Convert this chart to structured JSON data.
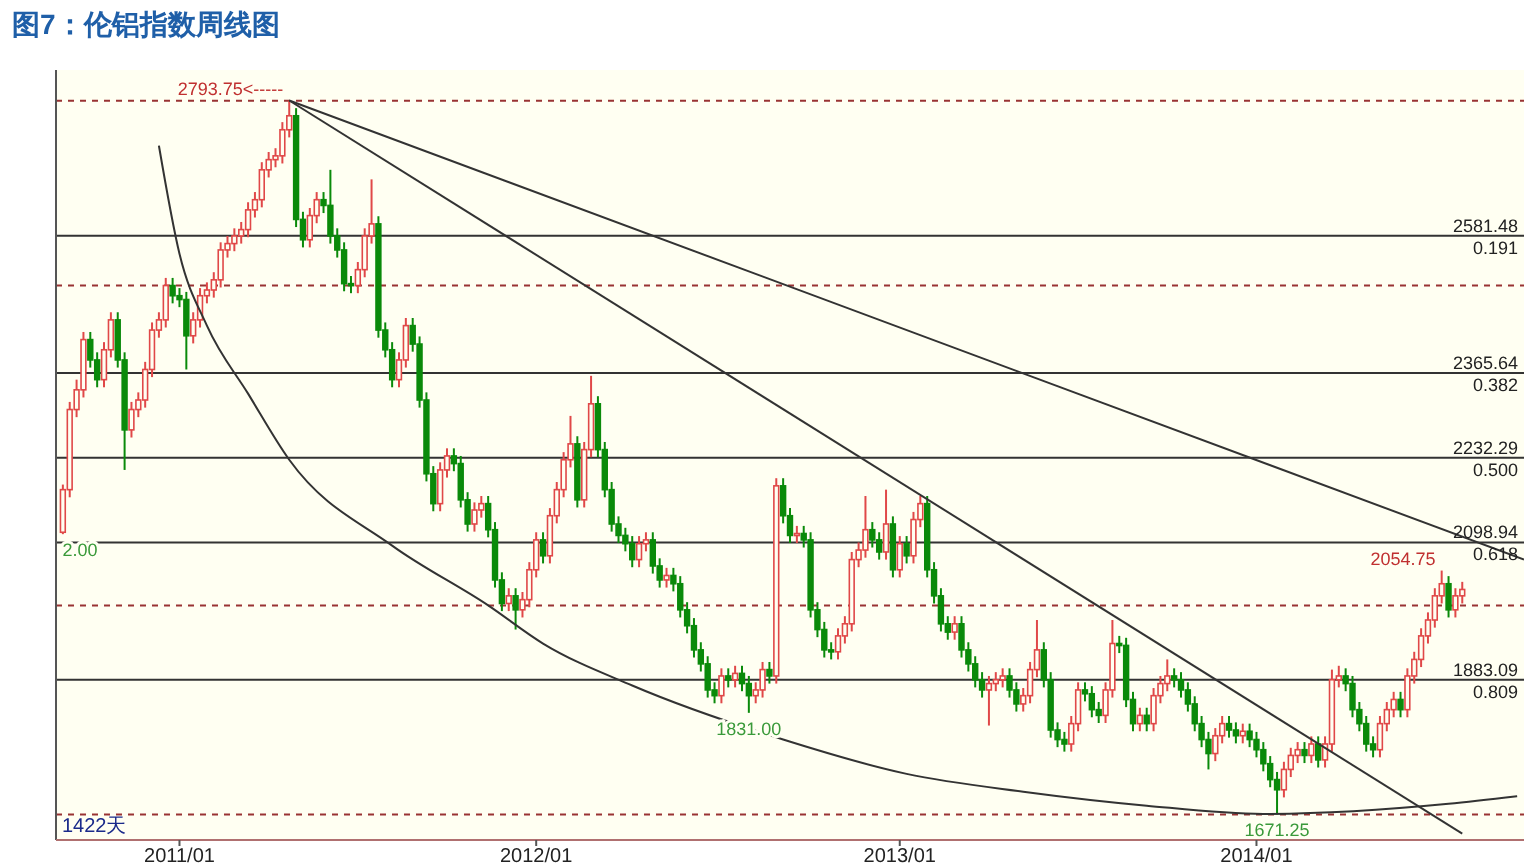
{
  "chart_data": {
    "type": "candlestick",
    "title": "图7：伦铝指数周线图",
    "x": [
      "2010-09-06",
      "2010-09-13",
      "2010-09-20",
      "2010-09-27",
      "2010-10-04",
      "2010-10-11",
      "2010-10-18",
      "2010-10-25",
      "2010-11-01",
      "2010-11-08",
      "2010-11-15",
      "2010-11-22",
      "2010-11-29",
      "2010-12-06",
      "2010-12-13",
      "2010-12-20",
      "2010-12-27",
      "2011-01-03",
      "2011-01-10",
      "2011-01-17",
      "2011-01-24",
      "2011-01-31",
      "2011-02-07",
      "2011-02-14",
      "2011-02-21",
      "2011-02-28",
      "2011-03-07",
      "2011-03-14",
      "2011-03-21",
      "2011-03-28",
      "2011-04-04",
      "2011-04-11",
      "2011-04-18",
      "2011-04-25",
      "2011-05-02",
      "2011-05-09",
      "2011-05-16",
      "2011-05-23",
      "2011-05-30",
      "2011-06-06",
      "2011-06-13",
      "2011-06-20",
      "2011-06-27",
      "2011-07-04",
      "2011-07-11",
      "2011-07-18",
      "2011-07-25",
      "2011-08-01",
      "2011-08-08",
      "2011-08-15",
      "2011-08-22",
      "2011-08-29",
      "2011-09-05",
      "2011-09-12",
      "2011-09-19",
      "2011-09-26",
      "2011-10-03",
      "2011-10-10",
      "2011-10-17",
      "2011-10-24",
      "2011-10-31",
      "2011-11-07",
      "2011-11-14",
      "2011-11-21",
      "2011-11-28",
      "2011-12-05",
      "2011-12-12",
      "2011-12-19",
      "2011-12-26",
      "2012-01-02",
      "2012-01-09",
      "2012-01-16",
      "2012-01-23",
      "2012-01-30",
      "2012-02-06",
      "2012-02-13",
      "2012-02-20",
      "2012-02-27",
      "2012-03-05",
      "2012-03-12",
      "2012-03-19",
      "2012-03-26",
      "2012-04-02",
      "2012-04-09",
      "2012-04-16",
      "2012-04-23",
      "2012-04-30",
      "2012-05-07",
      "2012-05-14",
      "2012-05-21",
      "2012-05-28",
      "2012-06-04",
      "2012-06-11",
      "2012-06-18",
      "2012-06-25",
      "2012-07-02",
      "2012-07-09",
      "2012-07-16",
      "2012-07-23",
      "2012-07-30",
      "2012-08-06",
      "2012-08-13",
      "2012-08-20",
      "2012-08-27",
      "2012-09-03",
      "2012-09-10",
      "2012-09-17",
      "2012-09-24",
      "2012-10-01",
      "2012-10-08",
      "2012-10-15",
      "2012-10-22",
      "2012-10-29",
      "2012-11-05",
      "2012-11-12",
      "2012-11-19",
      "2012-11-26",
      "2012-12-03",
      "2012-12-10",
      "2012-12-17",
      "2012-12-24",
      "2012-12-31",
      "2013-01-07",
      "2013-01-14",
      "2013-01-21",
      "2013-01-28",
      "2013-02-04",
      "2013-02-11",
      "2013-02-18",
      "2013-02-25",
      "2013-03-04",
      "2013-03-11",
      "2013-03-18",
      "2013-03-25",
      "2013-04-01",
      "2013-04-08",
      "2013-04-15",
      "2013-04-22",
      "2013-04-29",
      "2013-05-06",
      "2013-05-13",
      "2013-05-20",
      "2013-05-27",
      "2013-06-03",
      "2013-06-10",
      "2013-06-17",
      "2013-06-24",
      "2013-07-01",
      "2013-07-08",
      "2013-07-15",
      "2013-07-22",
      "2013-07-29",
      "2013-08-05",
      "2013-08-12",
      "2013-08-19",
      "2013-08-26",
      "2013-09-02",
      "2013-09-09",
      "2013-09-16",
      "2013-09-23",
      "2013-09-30",
      "2013-10-07",
      "2013-10-14",
      "2013-10-21",
      "2013-10-28",
      "2013-11-04",
      "2013-11-11",
      "2013-11-18",
      "2013-11-25",
      "2013-12-02",
      "2013-12-09",
      "2013-12-16",
      "2013-12-23",
      "2013-12-30",
      "2014-01-06",
      "2014-01-13",
      "2014-01-20",
      "2014-01-27",
      "2014-02-03",
      "2014-02-10",
      "2014-02-17",
      "2014-02-24",
      "2014-03-03",
      "2014-03-10",
      "2014-03-17",
      "2014-03-24",
      "2014-03-31",
      "2014-04-07",
      "2014-04-14",
      "2014-04-21",
      "2014-04-28",
      "2014-05-05",
      "2014-05-12",
      "2014-05-19",
      "2014-05-26",
      "2014-06-02",
      "2014-06-09",
      "2014-06-16",
      "2014-06-23",
      "2014-06-30",
      "2014-07-07",
      "2014-07-14",
      "2014-07-21",
      "2014-07-28",
      "2014-08-04"
    ],
    "ohlc": [
      [
        2115,
        2190,
        2112,
        2182
      ],
      [
        2182,
        2320,
        2170,
        2308
      ],
      [
        2308,
        2355,
        2296,
        2339
      ],
      [
        2339,
        2430,
        2327,
        2418
      ],
      [
        2418,
        2430,
        2374,
        2386
      ],
      [
        2386,
        2398,
        2343,
        2355
      ],
      [
        2355,
        2414,
        2343,
        2402
      ],
      [
        2402,
        2461,
        2390,
        2449
      ],
      [
        2449,
        2461,
        2374,
        2386
      ],
      [
        2386,
        2398,
        2213,
        2276
      ],
      [
        2276,
        2320,
        2264,
        2308
      ],
      [
        2308,
        2335,
        2296,
        2323
      ],
      [
        2323,
        2383,
        2311,
        2371
      ],
      [
        2371,
        2445,
        2359,
        2433
      ],
      [
        2433,
        2461,
        2421,
        2449
      ],
      [
        2449,
        2515,
        2437,
        2503
      ],
      [
        2503,
        2515,
        2475,
        2487
      ],
      [
        2487,
        2499,
        2469,
        2481
      ],
      [
        2481,
        2493,
        2371,
        2424
      ],
      [
        2424,
        2461,
        2412,
        2449
      ],
      [
        2449,
        2499,
        2437,
        2487
      ],
      [
        2487,
        2508,
        2475,
        2496
      ],
      [
        2496,
        2524,
        2484,
        2512
      ],
      [
        2512,
        2571,
        2500,
        2559
      ],
      [
        2559,
        2581,
        2547,
        2569
      ],
      [
        2569,
        2593,
        2557,
        2581
      ],
      [
        2581,
        2603,
        2569,
        2591
      ],
      [
        2591,
        2634,
        2579,
        2622
      ],
      [
        2622,
        2650,
        2610,
        2638
      ],
      [
        2638,
        2697,
        2626,
        2685
      ],
      [
        2685,
        2713,
        2673,
        2701
      ],
      [
        2701,
        2719,
        2689,
        2707
      ],
      [
        2707,
        2760,
        2695,
        2748
      ],
      [
        2748,
        2793.75,
        2736,
        2770
      ],
      [
        2770,
        2782,
        2595,
        2607
      ],
      [
        2607,
        2619,
        2563,
        2575
      ],
      [
        2575,
        2625,
        2563,
        2613
      ],
      [
        2613,
        2650,
        2601,
        2638
      ],
      [
        2638,
        2650,
        2617,
        2629
      ],
      [
        2629,
        2685,
        2569,
        2581
      ],
      [
        2581,
        2593,
        2547,
        2559
      ],
      [
        2559,
        2571,
        2494,
        2506
      ],
      [
        2506,
        2518,
        2491,
        2503
      ],
      [
        2503,
        2540,
        2491,
        2528
      ],
      [
        2528,
        2593,
        2516,
        2581
      ],
      [
        2581,
        2670,
        2569,
        2600
      ],
      [
        2600,
        2612,
        2421,
        2433
      ],
      [
        2433,
        2445,
        2390,
        2402
      ],
      [
        2402,
        2414,
        2343,
        2355
      ],
      [
        2355,
        2398,
        2343,
        2386
      ],
      [
        2386,
        2452,
        2374,
        2440
      ],
      [
        2440,
        2452,
        2399,
        2411
      ],
      [
        2411,
        2423,
        2311,
        2323
      ],
      [
        2323,
        2335,
        2195,
        2207
      ],
      [
        2207,
        2219,
        2148,
        2160
      ],
      [
        2160,
        2225,
        2148,
        2213
      ],
      [
        2213,
        2247,
        2201,
        2235
      ],
      [
        2235,
        2247,
        2211,
        2223
      ],
      [
        2223,
        2235,
        2154,
        2166
      ],
      [
        2166,
        2178,
        2116,
        2128
      ],
      [
        2128,
        2162,
        2116,
        2150
      ],
      [
        2150,
        2172,
        2138,
        2160
      ],
      [
        2160,
        2172,
        2107,
        2119
      ],
      [
        2119,
        2131,
        2028,
        2040
      ],
      [
        2040,
        2052,
        1991,
        2003
      ],
      [
        2003,
        2027,
        1991,
        2015
      ],
      [
        2015,
        2027,
        1962,
        1993
      ],
      [
        1993,
        2021,
        1981,
        2009
      ],
      [
        2009,
        2068,
        1997,
        2056
      ],
      [
        2056,
        2115,
        2044,
        2103
      ],
      [
        2103,
        2115,
        2066,
        2078
      ],
      [
        2078,
        2153,
        2066,
        2141
      ],
      [
        2141,
        2194,
        2129,
        2182
      ],
      [
        2182,
        2241,
        2170,
        2229
      ],
      [
        2229,
        2298,
        2217,
        2254
      ],
      [
        2254,
        2266,
        2154,
        2166
      ],
      [
        2166,
        2257,
        2154,
        2245
      ],
      [
        2245,
        2361,
        2233,
        2317
      ],
      [
        2317,
        2329,
        2233,
        2245
      ],
      [
        2245,
        2257,
        2170,
        2182
      ],
      [
        2182,
        2194,
        2116,
        2128
      ],
      [
        2128,
        2140,
        2098,
        2110
      ],
      [
        2110,
        2122,
        2085,
        2097
      ],
      [
        2097,
        2109,
        2060,
        2072
      ],
      [
        2072,
        2109,
        2060,
        2097
      ],
      [
        2097,
        2115,
        2085,
        2103
      ],
      [
        2103,
        2115,
        2050,
        2062
      ],
      [
        2062,
        2074,
        2028,
        2040
      ],
      [
        2040,
        2059,
        2028,
        2047
      ],
      [
        2047,
        2059,
        2022,
        2034
      ],
      [
        2034,
        2046,
        1981,
        1993
      ],
      [
        1993,
        2005,
        1956,
        1968
      ],
      [
        1968,
        1980,
        1918,
        1930
      ],
      [
        1930,
        1942,
        1896,
        1908
      ],
      [
        1908,
        1920,
        1855,
        1867
      ],
      [
        1867,
        1879,
        1846,
        1858
      ],
      [
        1858,
        1901,
        1846,
        1889
      ],
      [
        1889,
        1901,
        1871,
        1883
      ],
      [
        1883,
        1905,
        1871,
        1893
      ],
      [
        1893,
        1905,
        1865,
        1877
      ],
      [
        1877,
        1889,
        1831,
        1858
      ],
      [
        1858,
        1879,
        1846,
        1867
      ],
      [
        1867,
        1911,
        1855,
        1899
      ],
      [
        1899,
        1911,
        1877,
        1889
      ],
      [
        1889,
        2200,
        1877,
        2188
      ],
      [
        2188,
        2200,
        2129,
        2141
      ],
      [
        2141,
        2153,
        2098,
        2110
      ],
      [
        2110,
        2125,
        2098,
        2113
      ],
      [
        2113,
        2125,
        2091,
        2103
      ],
      [
        2103,
        2115,
        1981,
        1993
      ],
      [
        1993,
        2005,
        1950,
        1962
      ],
      [
        1962,
        1974,
        1918,
        1930
      ],
      [
        1930,
        1942,
        1915,
        1927
      ],
      [
        1927,
        1964,
        1915,
        1952
      ],
      [
        1952,
        1983,
        1940,
        1971
      ],
      [
        1971,
        2084,
        1959,
        2072
      ],
      [
        2072,
        2099,
        2060,
        2087
      ],
      [
        2087,
        2172,
        2075,
        2119
      ],
      [
        2119,
        2131,
        2091,
        2103
      ],
      [
        2103,
        2115,
        2072,
        2084
      ],
      [
        2084,
        2182,
        2072,
        2128
      ],
      [
        2128,
        2140,
        2044,
        2056
      ],
      [
        2056,
        2109,
        2044,
        2097
      ],
      [
        2097,
        2109,
        2066,
        2078
      ],
      [
        2078,
        2147,
        2066,
        2135
      ],
      [
        2135,
        2172,
        2123,
        2160
      ],
      [
        2160,
        2172,
        2044,
        2056
      ],
      [
        2056,
        2068,
        2003,
        2015
      ],
      [
        2015,
        2027,
        1959,
        1971
      ],
      [
        1971,
        1983,
        1946,
        1958
      ],
      [
        1958,
        1983,
        1946,
        1971
      ],
      [
        1971,
        1983,
        1918,
        1930
      ],
      [
        1930,
        1942,
        1896,
        1908
      ],
      [
        1908,
        1920,
        1871,
        1883
      ],
      [
        1883,
        1895,
        1855,
        1867
      ],
      [
        1867,
        1889,
        1811,
        1877
      ],
      [
        1877,
        1895,
        1865,
        1883
      ],
      [
        1883,
        1901,
        1871,
        1889
      ],
      [
        1889,
        1901,
        1855,
        1867
      ],
      [
        1867,
        1879,
        1833,
        1845
      ],
      [
        1845,
        1870,
        1833,
        1858
      ],
      [
        1858,
        1911,
        1846,
        1899
      ],
      [
        1899,
        1977,
        1887,
        1930
      ],
      [
        1930,
        1942,
        1871,
        1883
      ],
      [
        1883,
        1895,
        1792,
        1804
      ],
      [
        1804,
        1816,
        1777,
        1789
      ],
      [
        1789,
        1801,
        1770,
        1782
      ],
      [
        1782,
        1826,
        1770,
        1814
      ],
      [
        1814,
        1879,
        1802,
        1867
      ],
      [
        1867,
        1879,
        1849,
        1861
      ],
      [
        1861,
        1873,
        1824,
        1836
      ],
      [
        1836,
        1848,
        1815,
        1827
      ],
      [
        1827,
        1879,
        1815,
        1867
      ],
      [
        1867,
        1977,
        1855,
        1940
      ],
      [
        1940,
        1952,
        1925,
        1937
      ],
      [
        1937,
        1949,
        1840,
        1852
      ],
      [
        1852,
        1864,
        1802,
        1814
      ],
      [
        1814,
        1839,
        1802,
        1827
      ],
      [
        1827,
        1839,
        1802,
        1814
      ],
      [
        1814,
        1870,
        1802,
        1858
      ],
      [
        1858,
        1889,
        1846,
        1877
      ],
      [
        1877,
        1915,
        1865,
        1889
      ],
      [
        1889,
        1901,
        1871,
        1883
      ],
      [
        1883,
        1895,
        1855,
        1867
      ],
      [
        1867,
        1879,
        1833,
        1845
      ],
      [
        1845,
        1857,
        1802,
        1814
      ],
      [
        1814,
        1826,
        1777,
        1789
      ],
      [
        1789,
        1801,
        1742,
        1767
      ],
      [
        1767,
        1807,
        1755,
        1795
      ],
      [
        1795,
        1826,
        1783,
        1814
      ],
      [
        1814,
        1826,
        1792,
        1804
      ],
      [
        1804,
        1816,
        1783,
        1795
      ],
      [
        1795,
        1814,
        1783,
        1802
      ],
      [
        1802,
        1814,
        1777,
        1789
      ],
      [
        1789,
        1801,
        1761,
        1773
      ],
      [
        1773,
        1785,
        1739,
        1751
      ],
      [
        1751,
        1763,
        1714,
        1726
      ],
      [
        1726,
        1738,
        1671.25,
        1710
      ],
      [
        1710,
        1754,
        1698,
        1742
      ],
      [
        1742,
        1776,
        1730,
        1764
      ],
      [
        1764,
        1785,
        1752,
        1773
      ],
      [
        1773,
        1785,
        1752,
        1764
      ],
      [
        1764,
        1794,
        1752,
        1782
      ],
      [
        1782,
        1794,
        1745,
        1757
      ],
      [
        1757,
        1794,
        1745,
        1782
      ],
      [
        1782,
        1899,
        1770,
        1883
      ],
      [
        1883,
        1905,
        1871,
        1889
      ],
      [
        1889,
        1901,
        1865,
        1877
      ],
      [
        1877,
        1889,
        1824,
        1836
      ],
      [
        1836,
        1848,
        1802,
        1814
      ],
      [
        1814,
        1826,
        1770,
        1782
      ],
      [
        1782,
        1794,
        1761,
        1773
      ],
      [
        1773,
        1826,
        1761,
        1814
      ],
      [
        1814,
        1848,
        1802,
        1836
      ],
      [
        1836,
        1864,
        1824,
        1852
      ],
      [
        1852,
        1864,
        1824,
        1836
      ],
      [
        1836,
        1901,
        1824,
        1889
      ],
      [
        1889,
        1927,
        1877,
        1915
      ],
      [
        1915,
        1964,
        1903,
        1952
      ],
      [
        1952,
        1989,
        1940,
        1977
      ],
      [
        1977,
        2027,
        1965,
        2015
      ],
      [
        2015,
        2054.75,
        2003,
        2034
      ],
      [
        2034,
        2046,
        1981,
        1993
      ],
      [
        1993,
        2027,
        1981,
        2015
      ],
      [
        2015,
        2037,
        2003,
        2025
      ]
    ],
    "xlim": [
      "2010-08-30",
      "2014-10-06"
    ],
    "ylim": [
      1631,
      2842
    ],
    "xticks": [
      {
        "value": "2011-01-03",
        "label": "2011/01"
      },
      {
        "value": "2012-01-02",
        "label": "2012/01"
      },
      {
        "value": "2013-01-07",
        "label": "2013/01"
      },
      {
        "value": "2014-01-06",
        "label": "2014/01"
      }
    ],
    "tick_labels": "x",
    "series": [
      {
        "type": "line",
        "color": "#333333",
        "x": [
          "2011-04-25",
          "2014-10-06"
        ],
        "values": [
          2794,
          2072
        ]
      },
      {
        "type": "line",
        "color": "#333333",
        "x": [
          "2011-04-25",
          "2014-08-04"
        ],
        "values": [
          2794,
          1641
        ]
      },
      {
        "type": "line",
        "color": "#333333",
        "x": [
          "2010-12-13",
          "2011-01-03",
          "2011-01-31",
          "2011-03-14",
          "2011-04-25",
          "2011-08-08",
          "2011-11-14",
          "2012-01-09",
          "2012-04-09",
          "2012-09-10",
          "2013-01-14",
          "2013-05-13",
          "2013-09-16",
          "2014-01-13",
          "2014-07-21",
          "2014-09-29"
        ],
        "values": [
          2723,
          2553,
          2440,
          2333,
          2229,
          2094,
          2000,
          1940,
          1874,
          1789,
          1735,
          1707,
          1685,
          1672,
          1688,
          1700
        ]
      }
    ],
    "ref_lines": [
      {
        "axis": "y",
        "value": 2581.48,
        "label": "2581.48\n0.191",
        "color": "#333333"
      },
      {
        "axis": "y",
        "value": 2365.64,
        "label": "2365.64\n0.382",
        "color": "#333333"
      },
      {
        "axis": "y",
        "value": 2232.29,
        "label": "2232.29\n0.500",
        "color": "#333333"
      },
      {
        "axis": "y",
        "value": 2098.94,
        "label": "2098.94\n0.618",
        "color": "#333333"
      },
      {
        "axis": "y",
        "value": 1883.09,
        "label": "1883.09\n0.809",
        "color": "#333333"
      },
      {
        "axis": "y",
        "value": 2793.75,
        "label": null,
        "color": "#993333",
        "line_style": "dashed"
      },
      {
        "axis": "y",
        "value": 2503,
        "label": null,
        "color": "#993333",
        "line_style": "dashed"
      },
      {
        "axis": "y",
        "value": 2000,
        "label": null,
        "color": "#993333",
        "line_style": "dashed"
      },
      {
        "axis": "y",
        "value": 1671.25,
        "label": null,
        "color": "#993333",
        "line_style": "dashed"
      }
    ],
    "annotations": [
      {
        "text": "2793.75<-----",
        "x": "2011-04-25",
        "y": 2793.75
      },
      {
        "text": "2054.75",
        "x": "2014-07-14",
        "y": 2054.75
      },
      {
        "text": "1831.00",
        "x": "2012-08-06",
        "y": 1831
      },
      {
        "text": "1671.25",
        "x": "2014-01-27",
        "y": 1671.25
      },
      {
        "text": "2.00",
        "x": "2010-09-06",
        "y": 2112
      },
      "1422天"
    ]
  }
}
